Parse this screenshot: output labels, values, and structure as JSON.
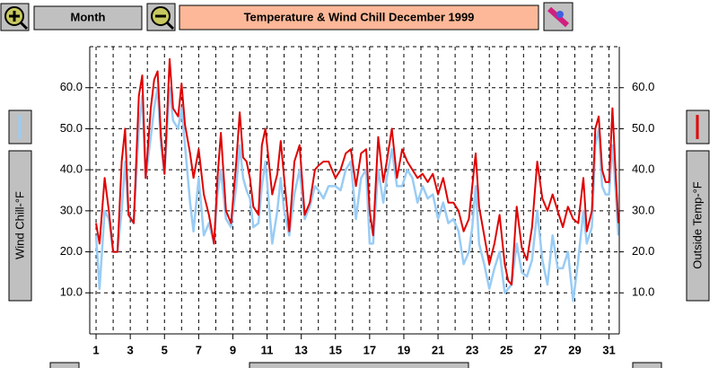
{
  "toolbar": {
    "period_button": "Month"
  },
  "chart_data": {
    "type": "line",
    "title": "Temperature & Wind Chill  December 1999",
    "x": [
      1,
      1.2,
      1.5,
      1.75,
      2,
      2.25,
      2.5,
      2.7,
      2.9,
      3.2,
      3.5,
      3.7,
      3.9,
      4.2,
      4.4,
      4.6,
      4.8,
      5,
      5.3,
      5.5,
      5.8,
      6,
      6.2,
      6.5,
      6.7,
      7,
      7.3,
      7.6,
      7.9,
      8.1,
      8.3,
      8.6,
      8.9,
      9.2,
      9.4,
      9.6,
      9.8,
      10,
      10.2,
      10.5,
      10.7,
      10.9,
      11.1,
      11.3,
      11.6,
      11.8,
      12,
      12.3,
      12.6,
      12.9,
      13.2,
      13.5,
      13.8,
      14,
      14.3,
      14.6,
      15,
      15.3,
      15.6,
      15.9,
      16.2,
      16.5,
      16.8,
      17,
      17.2,
      17.5,
      17.8,
      18,
      18.3,
      18.6,
      18.9,
      19.2,
      19.5,
      19.8,
      20.1,
      20.4,
      20.7,
      21,
      21.3,
      21.6,
      21.9,
      22.2,
      22.5,
      22.8,
      23,
      23.2,
      23.4,
      23.7,
      24,
      24.3,
      24.6,
      24.9,
      25.1,
      25.3,
      25.6,
      25.9,
      26.2,
      26.5,
      26.8,
      27.1,
      27.4,
      27.7,
      28,
      28.3,
      28.6,
      28.9,
      29.2,
      29.5,
      29.7,
      30,
      30.2,
      30.4,
      30.6,
      30.8,
      31,
      31.2,
      31.4,
      31.55
    ],
    "series": [
      {
        "name": "Wind Chill-°F",
        "color": "#99ccf5",
        "axis": "y",
        "values": [
          24,
          11,
          30,
          28,
          20,
          20,
          30,
          42,
          29,
          27,
          50,
          58,
          38,
          48,
          55,
          60,
          46,
          39,
          60,
          52,
          50,
          55,
          46,
          32,
          25,
          38,
          24,
          27,
          22,
          34,
          40,
          28,
          26,
          36,
          46,
          38,
          35,
          33,
          26,
          27,
          36,
          42,
          32,
          22,
          30,
          38,
          30,
          24,
          34,
          40,
          28,
          31,
          36,
          35,
          33,
          36,
          36,
          35,
          40,
          42,
          28,
          38,
          40,
          22,
          22,
          40,
          32,
          38,
          45,
          36,
          36,
          40,
          38,
          32,
          36,
          33,
          34,
          28,
          32,
          27,
          28,
          25,
          17,
          20,
          26,
          36,
          22,
          17,
          11,
          16,
          20,
          10,
          11,
          12,
          22,
          15,
          14,
          18,
          30,
          18,
          12,
          24,
          16,
          16,
          20,
          8,
          18,
          30,
          22,
          26,
          46,
          50,
          36,
          34,
          34,
          46,
          34,
          24
        ]
      },
      {
        "name": "Outside Temp-°F",
        "color": "#e00000",
        "axis": "y2",
        "values": [
          27,
          22,
          38,
          30,
          20,
          20,
          42,
          50,
          29,
          27,
          58,
          63,
          38,
          55,
          62,
          64,
          48,
          39,
          67,
          55,
          53,
          61,
          51,
          44,
          38,
          45,
          34,
          29,
          22,
          38,
          49,
          30,
          27,
          42,
          54,
          43,
          42,
          38,
          31,
          29,
          46,
          50,
          42,
          34,
          39,
          47,
          38,
          25,
          42,
          46,
          29,
          32,
          40,
          41,
          42,
          42,
          38,
          40,
          44,
          45,
          36,
          44,
          45,
          30,
          24,
          48,
          37,
          42,
          50,
          38,
          45,
          42,
          40,
          38,
          39,
          37,
          39,
          34,
          38,
          32,
          32,
          30,
          25,
          28,
          36,
          44,
          31,
          24,
          17,
          22,
          29,
          17,
          13,
          12,
          31,
          21,
          18,
          26,
          42,
          33,
          30,
          34,
          30,
          26,
          31,
          28,
          27,
          38,
          25,
          30,
          50,
          53,
          40,
          37,
          37,
          55,
          38,
          27
        ]
      }
    ],
    "xlim": [
      0.63,
      31.6
    ],
    "xticks": [
      1,
      3,
      5,
      7,
      9,
      11,
      13,
      15,
      17,
      19,
      21,
      23,
      25,
      27,
      29,
      31
    ],
    "xgrid": [
      1,
      2,
      3,
      4,
      5,
      6,
      7,
      8,
      9,
      10,
      11,
      12,
      13,
      14,
      15,
      16,
      17,
      18,
      19,
      20,
      21,
      22,
      23,
      24,
      25,
      26,
      27,
      28,
      29,
      30,
      31
    ],
    "ylim": [
      0,
      70
    ],
    "yticks": [
      {
        "value": 10,
        "label": "10.0"
      },
      {
        "value": 20,
        "label": "20.0"
      },
      {
        "value": 30,
        "label": "30.0"
      },
      {
        "value": 40,
        "label": "40.0"
      },
      {
        "value": 50,
        "label": "50.0"
      },
      {
        "value": 60,
        "label": "60.0"
      }
    ],
    "y2lim": [
      0,
      70
    ],
    "y2ticks": [
      {
        "value": 10,
        "label": "10.0"
      },
      {
        "value": 20,
        "label": "20.0"
      },
      {
        "value": 30,
        "label": "30.0"
      },
      {
        "value": 40,
        "label": "40.0"
      },
      {
        "value": 50,
        "label": "50.0"
      },
      {
        "value": 60,
        "label": "60.0"
      }
    ],
    "grid": true
  }
}
